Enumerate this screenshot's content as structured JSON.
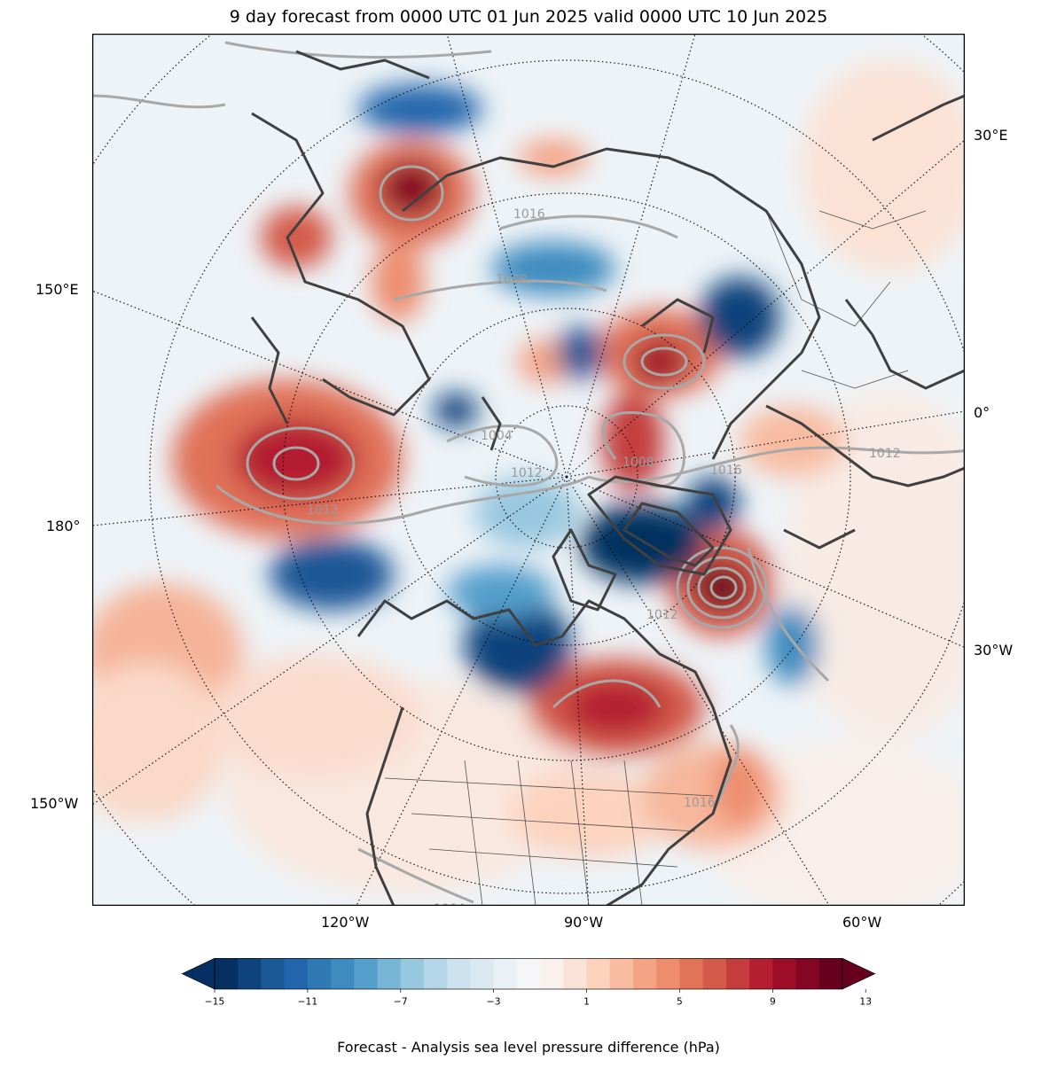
{
  "title": "9 day forecast from 0000 UTC 01 Jun 2025 valid 0000 UTC 10 Jun 2025",
  "longitude_labels": {
    "e30": "30°E",
    "e150": "150°E",
    "zero": "0°",
    "w180": "180°",
    "w30": "30°W",
    "w150": "150°W",
    "w120": "120°W",
    "w90": "90°W",
    "w60": "60°W"
  },
  "isobar_labels": [
    "1016",
    "1008",
    "1004",
    "1012",
    "1012",
    "1012",
    "1016",
    "1012",
    "1016",
    "1004",
    "1008"
  ],
  "colorbar": {
    "label": "Forecast - Analysis sea level pressure difference (hPa)",
    "ticks": [
      "−15",
      "−11",
      "−7",
      "−3",
      "1",
      "5",
      "9",
      "13"
    ],
    "colors": [
      "#053061",
      "#0f437b",
      "#1c5796",
      "#2166ac",
      "#2f79b5",
      "#3d8bbf",
      "#559fcc",
      "#78b4d6",
      "#98c8e0",
      "#b4d6e8",
      "#cde2ee",
      "#dbe9f2",
      "#e9f1f6",
      "#f4f6f8",
      "#f8f1ed",
      "#fae3d6",
      "#fcd2bc",
      "#f8bca1",
      "#f5a385",
      "#ee8d6e",
      "#e17358",
      "#d35a48",
      "#c43c3c",
      "#b41e30",
      "#9e0d28",
      "#850622",
      "#67001f"
    ],
    "under": "#053061",
    "over": "#67001f"
  }
}
